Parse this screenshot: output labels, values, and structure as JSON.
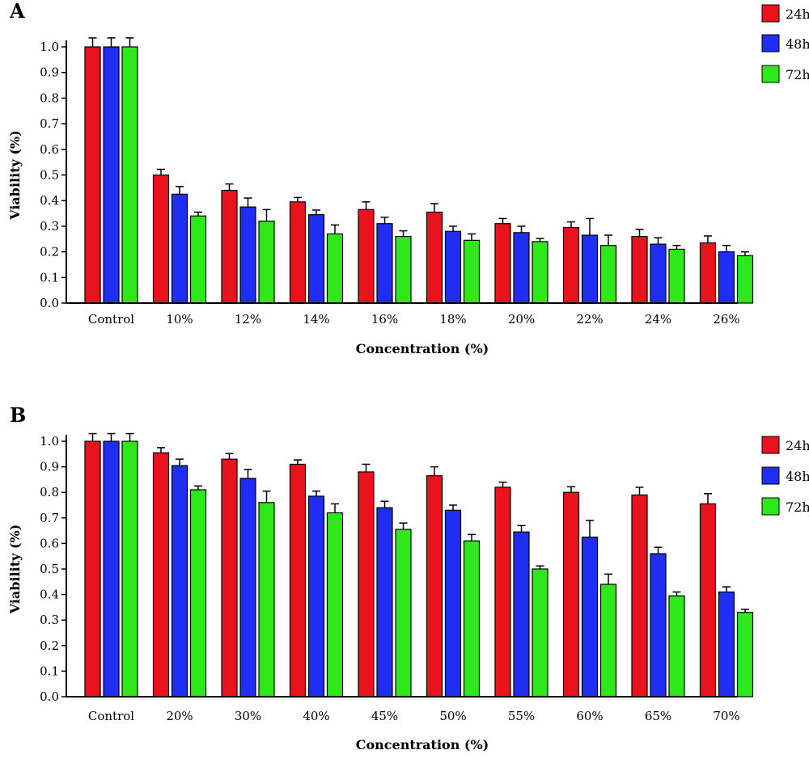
{
  "chart_data": [
    {
      "panel": "A",
      "type": "bar",
      "categories": [
        "Control",
        "10%",
        "12%",
        "14%",
        "16%",
        "18%",
        "20%",
        "22%",
        "24%",
        "26%"
      ],
      "series": [
        {
          "name": "24h",
          "color": "#e8131c",
          "values": [
            1.0,
            0.5,
            0.44,
            0.395,
            0.365,
            0.355,
            0.31,
            0.295,
            0.26,
            0.235
          ],
          "errors": [
            0.035,
            0.022,
            0.025,
            0.017,
            0.03,
            0.033,
            0.02,
            0.022,
            0.028,
            0.027
          ]
        },
        {
          "name": "48h",
          "color": "#1f2ef2",
          "values": [
            1.0,
            0.425,
            0.375,
            0.345,
            0.31,
            0.28,
            0.275,
            0.265,
            0.23,
            0.2
          ],
          "errors": [
            0.035,
            0.03,
            0.035,
            0.018,
            0.025,
            0.02,
            0.025,
            0.065,
            0.025,
            0.025
          ]
        },
        {
          "name": "72h",
          "color": "#2ee81a",
          "values": [
            1.0,
            0.34,
            0.32,
            0.27,
            0.26,
            0.245,
            0.24,
            0.225,
            0.21,
            0.185
          ],
          "errors": [
            0.035,
            0.015,
            0.045,
            0.035,
            0.022,
            0.025,
            0.012,
            0.04,
            0.015,
            0.015
          ]
        }
      ],
      "yticks": [
        "0.0",
        "0.1",
        "0.2",
        "0.3",
        "0.4",
        "0.5",
        "0.6",
        "0.7",
        "0.8",
        "0.9",
        "1.0"
      ],
      "ylim": [
        0,
        1.0
      ],
      "xlabel": "Concentration (%)",
      "ylabel": "Viability (%)",
      "legend_position": "right"
    },
    {
      "panel": "B",
      "type": "bar",
      "categories": [
        "Control",
        "20%",
        "30%",
        "40%",
        "45%",
        "50%",
        "55%",
        "60%",
        "65%",
        "70%"
      ],
      "series": [
        {
          "name": "24h",
          "color": "#e8131c",
          "values": [
            1.0,
            0.955,
            0.93,
            0.91,
            0.88,
            0.865,
            0.82,
            0.8,
            0.79,
            0.755
          ],
          "errors": [
            0.03,
            0.02,
            0.022,
            0.017,
            0.03,
            0.035,
            0.02,
            0.022,
            0.03,
            0.04
          ]
        },
        {
          "name": "48h",
          "color": "#1f2ef2",
          "values": [
            1.0,
            0.905,
            0.855,
            0.785,
            0.74,
            0.73,
            0.645,
            0.625,
            0.56,
            0.41
          ],
          "errors": [
            0.03,
            0.025,
            0.035,
            0.02,
            0.025,
            0.02,
            0.025,
            0.065,
            0.025,
            0.02
          ]
        },
        {
          "name": "72h",
          "color": "#2ee81a",
          "values": [
            1.0,
            0.81,
            0.76,
            0.72,
            0.655,
            0.61,
            0.5,
            0.44,
            0.395,
            0.33
          ],
          "errors": [
            0.03,
            0.015,
            0.045,
            0.035,
            0.025,
            0.025,
            0.012,
            0.04,
            0.015,
            0.012
          ]
        }
      ],
      "yticks": [
        "0.0",
        "0.1",
        "0.2",
        "0.3",
        "0.4",
        "0.5",
        "0.6",
        "0.7",
        "0.8",
        "0.9",
        "1.0"
      ],
      "ylim": [
        0,
        1.0
      ],
      "xlabel": "Concentration (%)",
      "ylabel": "Viability (%)",
      "legend_position": "right"
    }
  ]
}
